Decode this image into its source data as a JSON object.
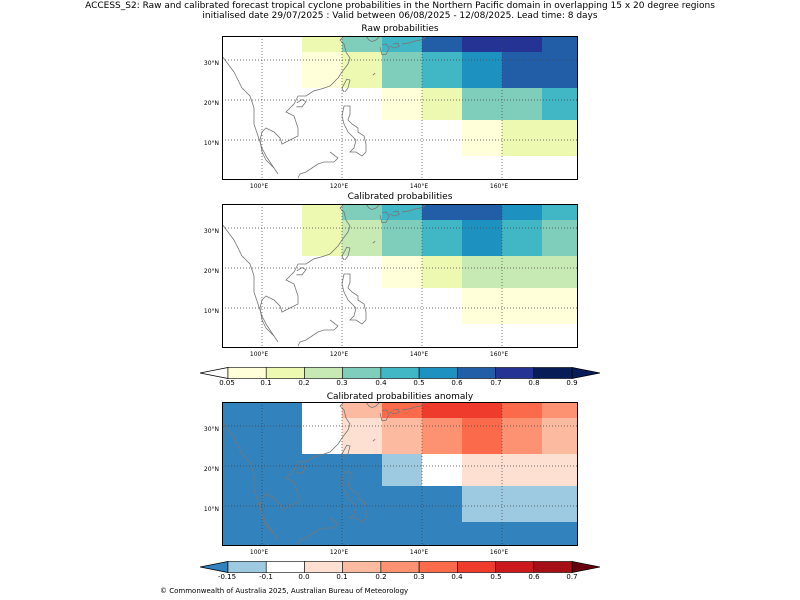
{
  "header": {
    "title_line1": "ACCESS_S2: Raw and calibrated forecast tropical cyclone probabilities in the Northern Pacific domain in overlapping 15 x 20 degree regions",
    "title_line2": "initialised date 29/07/2025 :  Valid between 06/08/2025 - 12/08/2025. Lead time: 8 days"
  },
  "map_axes": {
    "lat_labels": [
      "30°N",
      "20°N",
      "10°N"
    ],
    "lon_labels": [
      "100°E",
      "120°E",
      "140°E",
      "160°E"
    ]
  },
  "panels": [
    {
      "title": "Raw probabilities",
      "bands": [
        {
          "lat": [
            32,
            38
          ],
          "cells": [
            {
              "lon": [
                110,
                120
              ],
              "color": "#edf8b1"
            },
            {
              "lon": [
                120,
                130
              ],
              "color": "#7fcdbb"
            },
            {
              "lon": [
                130,
                140
              ],
              "color": "#41b6c4"
            },
            {
              "lon": [
                140,
                150
              ],
              "color": "#225ea8"
            },
            {
              "lon": [
                150,
                170
              ],
              "color": "#253494"
            },
            {
              "lon": [
                170,
                180
              ],
              "color": "#225ea8"
            }
          ]
        },
        {
          "lat": [
            23,
            32
          ],
          "cells": [
            {
              "lon": [
                110,
                120
              ],
              "color": "#ffffd9"
            },
            {
              "lon": [
                120,
                130
              ],
              "color": "#edf8b1"
            },
            {
              "lon": [
                130,
                140
              ],
              "color": "#7fcdbb"
            },
            {
              "lon": [
                140,
                150
              ],
              "color": "#41b6c4"
            },
            {
              "lon": [
                150,
                160
              ],
              "color": "#1d91c0"
            },
            {
              "lon": [
                160,
                180
              ],
              "color": "#225ea8"
            }
          ]
        },
        {
          "lat": [
            15,
            23
          ],
          "cells": [
            {
              "lon": [
                130,
                140
              ],
              "color": "#ffffd9"
            },
            {
              "lon": [
                140,
                150
              ],
              "color": "#edf8b1"
            },
            {
              "lon": [
                150,
                170
              ],
              "color": "#7fcdbb"
            },
            {
              "lon": [
                170,
                180
              ],
              "color": "#41b6c4"
            }
          ]
        },
        {
          "lat": [
            6,
            15
          ],
          "cells": [
            {
              "lon": [
                150,
                160
              ],
              "color": "#ffffd9"
            },
            {
              "lon": [
                160,
                180
              ],
              "color": "#edf8b1"
            }
          ]
        }
      ]
    },
    {
      "title": "Calibrated probabilities",
      "bands": [
        {
          "lat": [
            32,
            38
          ],
          "cells": [
            {
              "lon": [
                110,
                120
              ],
              "color": "#edf8b1"
            },
            {
              "lon": [
                120,
                130
              ],
              "color": "#7fcdbb"
            },
            {
              "lon": [
                130,
                140
              ],
              "color": "#41b6c4"
            },
            {
              "lon": [
                140,
                160
              ],
              "color": "#225ea8"
            },
            {
              "lon": [
                160,
                170
              ],
              "color": "#1d91c0"
            },
            {
              "lon": [
                170,
                180
              ],
              "color": "#41b6c4"
            }
          ]
        },
        {
          "lat": [
            23,
            32
          ],
          "cells": [
            {
              "lon": [
                110,
                120
              ],
              "color": "#edf8b1"
            },
            {
              "lon": [
                120,
                130
              ],
              "color": "#c7e9b4"
            },
            {
              "lon": [
                130,
                140
              ],
              "color": "#7fcdbb"
            },
            {
              "lon": [
                140,
                150
              ],
              "color": "#41b6c4"
            },
            {
              "lon": [
                150,
                160
              ],
              "color": "#1d91c0"
            },
            {
              "lon": [
                160,
                170
              ],
              "color": "#41b6c4"
            },
            {
              "lon": [
                170,
                180
              ],
              "color": "#7fcdbb"
            }
          ]
        },
        {
          "lat": [
            15,
            23
          ],
          "cells": [
            {
              "lon": [
                130,
                140
              ],
              "color": "#ffffd9"
            },
            {
              "lon": [
                140,
                150
              ],
              "color": "#edf8b1"
            },
            {
              "lon": [
                150,
                180
              ],
              "color": "#c7e9b4"
            }
          ]
        },
        {
          "lat": [
            6,
            15
          ],
          "cells": [
            {
              "lon": [
                150,
                180
              ],
              "color": "#ffffd9"
            }
          ]
        }
      ]
    },
    {
      "title": "Calibrated probabilities anomaly",
      "background": "#3182bd",
      "bands": [
        {
          "lat": [
            32,
            38
          ],
          "cells": [
            {
              "lon": [
                110,
                120
              ],
              "color": "#ffffff"
            },
            {
              "lon": [
                120,
                130
              ],
              "color": "#fcbba1"
            },
            {
              "lon": [
                130,
                140
              ],
              "color": "#fb6a4a"
            },
            {
              "lon": [
                140,
                160
              ],
              "color": "#ef3b2c"
            },
            {
              "lon": [
                160,
                170
              ],
              "color": "#fb6a4a"
            },
            {
              "lon": [
                170,
                180
              ],
              "color": "#fc9272"
            }
          ]
        },
        {
          "lat": [
            23,
            32
          ],
          "cells": [
            {
              "lon": [
                110,
                120
              ],
              "color": "#ffffff"
            },
            {
              "lon": [
                120,
                130
              ],
              "color": "#fee0d2"
            },
            {
              "lon": [
                130,
                140
              ],
              "color": "#fcbba1"
            },
            {
              "lon": [
                140,
                150
              ],
              "color": "#fc9272"
            },
            {
              "lon": [
                150,
                160
              ],
              "color": "#fb6a4a"
            },
            {
              "lon": [
                160,
                170
              ],
              "color": "#fc9272"
            },
            {
              "lon": [
                170,
                180
              ],
              "color": "#fcbba1"
            }
          ]
        },
        {
          "lat": [
            15,
            23
          ],
          "cells": [
            {
              "lon": [
                130,
                140
              ],
              "color": "#9ecae1"
            },
            {
              "lon": [
                140,
                150
              ],
              "color": "#ffffff"
            },
            {
              "lon": [
                150,
                180
              ],
              "color": "#fee0d2"
            }
          ]
        },
        {
          "lat": [
            6,
            15
          ],
          "cells": [
            {
              "lon": [
                150,
                180
              ],
              "color": "#9ecae1"
            }
          ]
        }
      ]
    }
  ],
  "colorbar_prob": {
    "labels": [
      "0.05",
      "0.1",
      "0.2",
      "0.3",
      "0.4",
      "0.5",
      "0.6",
      "0.7",
      "0.8",
      "0.9"
    ],
    "colors": [
      "#ffffd9",
      "#edf8b1",
      "#c7e9b4",
      "#7fcdbb",
      "#41b6c4",
      "#1d91c0",
      "#225ea8",
      "#253494",
      "#081d58"
    ],
    "under_color": "#ffffff",
    "over_color": "#081d58"
  },
  "colorbar_anom": {
    "labels": [
      "-0.15",
      "-0.1",
      "0.0",
      "0.1",
      "0.2",
      "0.3",
      "0.4",
      "0.5",
      "0.6",
      "0.7"
    ],
    "colors": [
      "#9ecae1",
      "#ffffff",
      "#fee0d2",
      "#fcbba1",
      "#fc9272",
      "#fb6a4a",
      "#ef3b2c",
      "#cb181d",
      "#a50f15"
    ],
    "under_color": "#3182bd",
    "over_color": "#67000d"
  },
  "footer": "© Commonwealth of Australia 2025, Australian Bureau of Meteorology"
}
